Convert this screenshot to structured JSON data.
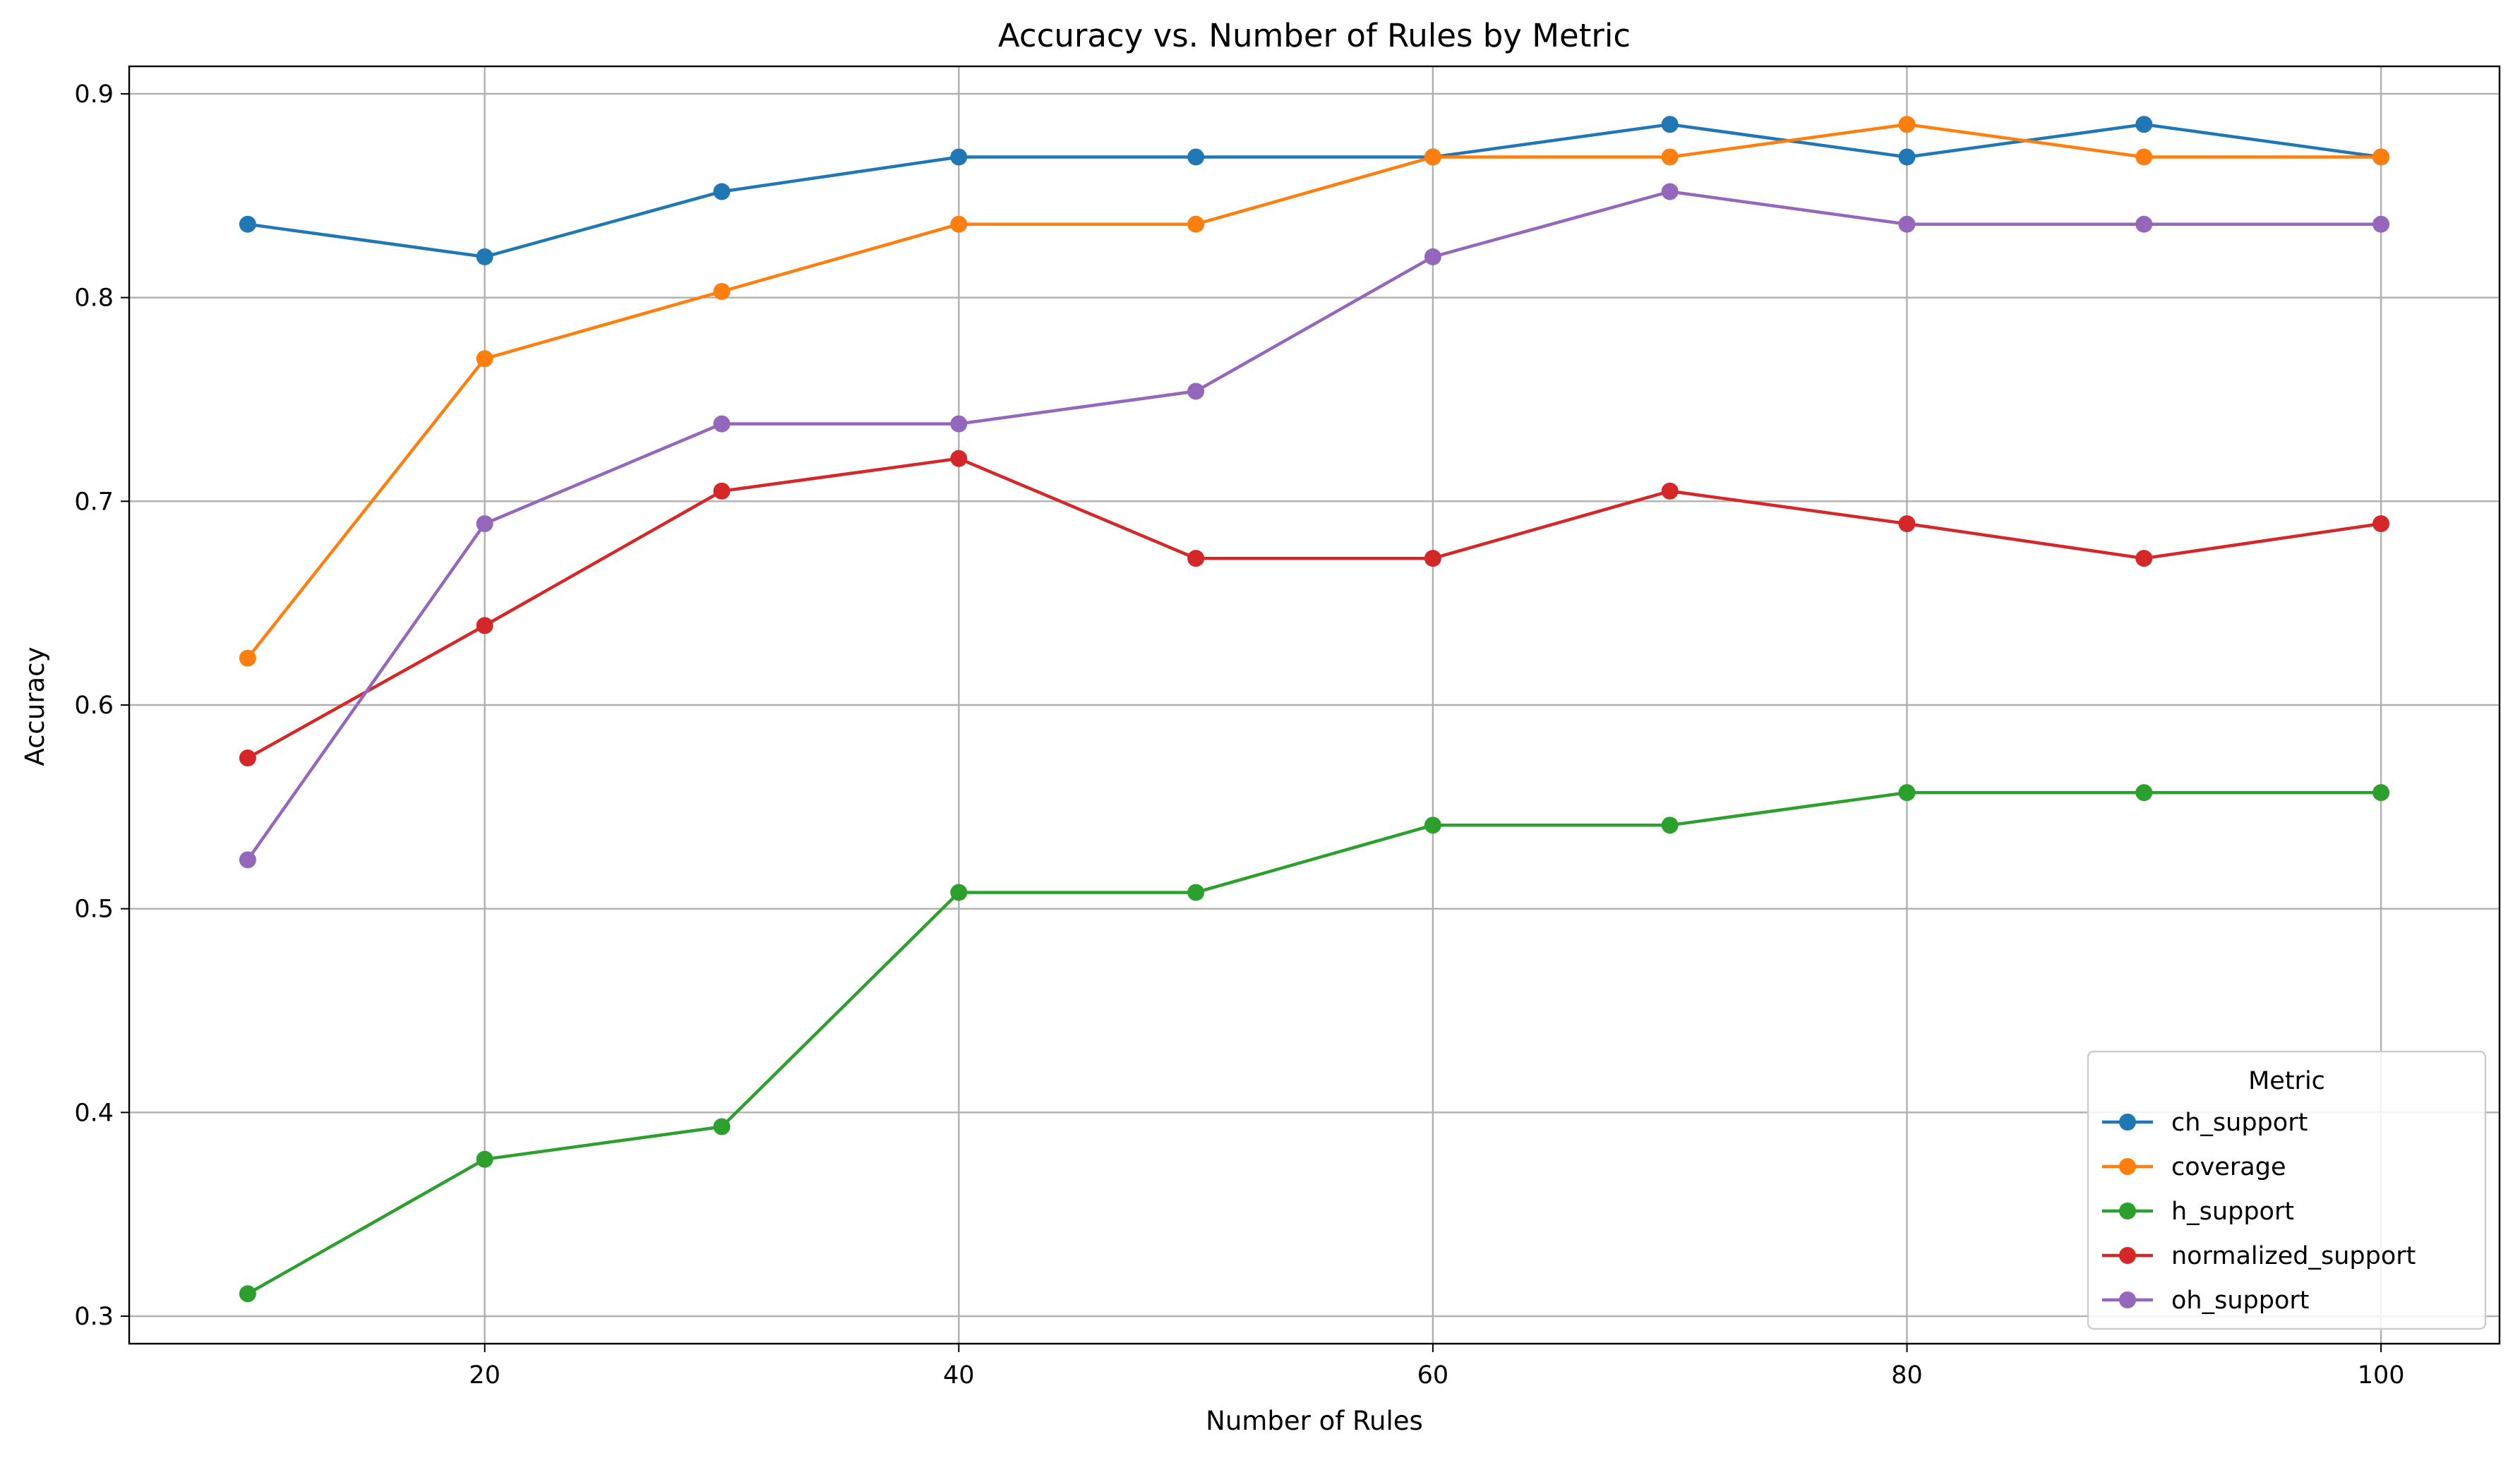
{
  "chart_data": {
    "type": "line",
    "title": "Accuracy vs. Number of Rules by Metric",
    "xlabel": "Number of Rules",
    "ylabel": "Accuracy",
    "x": [
      10,
      20,
      30,
      40,
      50,
      60,
      70,
      80,
      90,
      100
    ],
    "xlim": [
      5,
      105
    ],
    "ylim": [
      0.2865,
      0.9135
    ],
    "xticks": [
      20,
      40,
      60,
      80,
      100
    ],
    "yticks": [
      0.3,
      0.4,
      0.5,
      0.6,
      0.7,
      0.8,
      0.9
    ],
    "xtick_labels": [
      "20",
      "40",
      "60",
      "80",
      "100"
    ],
    "ytick_labels": [
      "0.3",
      "0.4",
      "0.5",
      "0.6",
      "0.7",
      "0.8",
      "0.9"
    ],
    "grid": true,
    "legend": {
      "title": "Metric",
      "placement": "lower-right"
    },
    "series": [
      {
        "name": "ch_support",
        "color": "#1f77b4",
        "values": [
          0.836,
          0.82,
          0.852,
          0.869,
          0.869,
          0.869,
          0.885,
          0.869,
          0.885,
          0.869
        ]
      },
      {
        "name": "coverage",
        "color": "#ff7f0e",
        "values": [
          0.623,
          0.77,
          0.803,
          0.836,
          0.836,
          0.869,
          0.869,
          0.885,
          0.869,
          0.869
        ]
      },
      {
        "name": "h_support",
        "color": "#2ca02c",
        "values": [
          0.311,
          0.377,
          0.393,
          0.508,
          0.508,
          0.541,
          0.541,
          0.557,
          0.557,
          0.557
        ]
      },
      {
        "name": "normalized_support",
        "color": "#d62728",
        "values": [
          0.574,
          0.639,
          0.705,
          0.721,
          0.672,
          0.672,
          0.705,
          0.689,
          0.672,
          0.689
        ]
      },
      {
        "name": "oh_support",
        "color": "#9467bd",
        "values": [
          0.524,
          0.689,
          0.738,
          0.738,
          0.754,
          0.82,
          0.852,
          0.836,
          0.836,
          0.836
        ]
      }
    ]
  }
}
